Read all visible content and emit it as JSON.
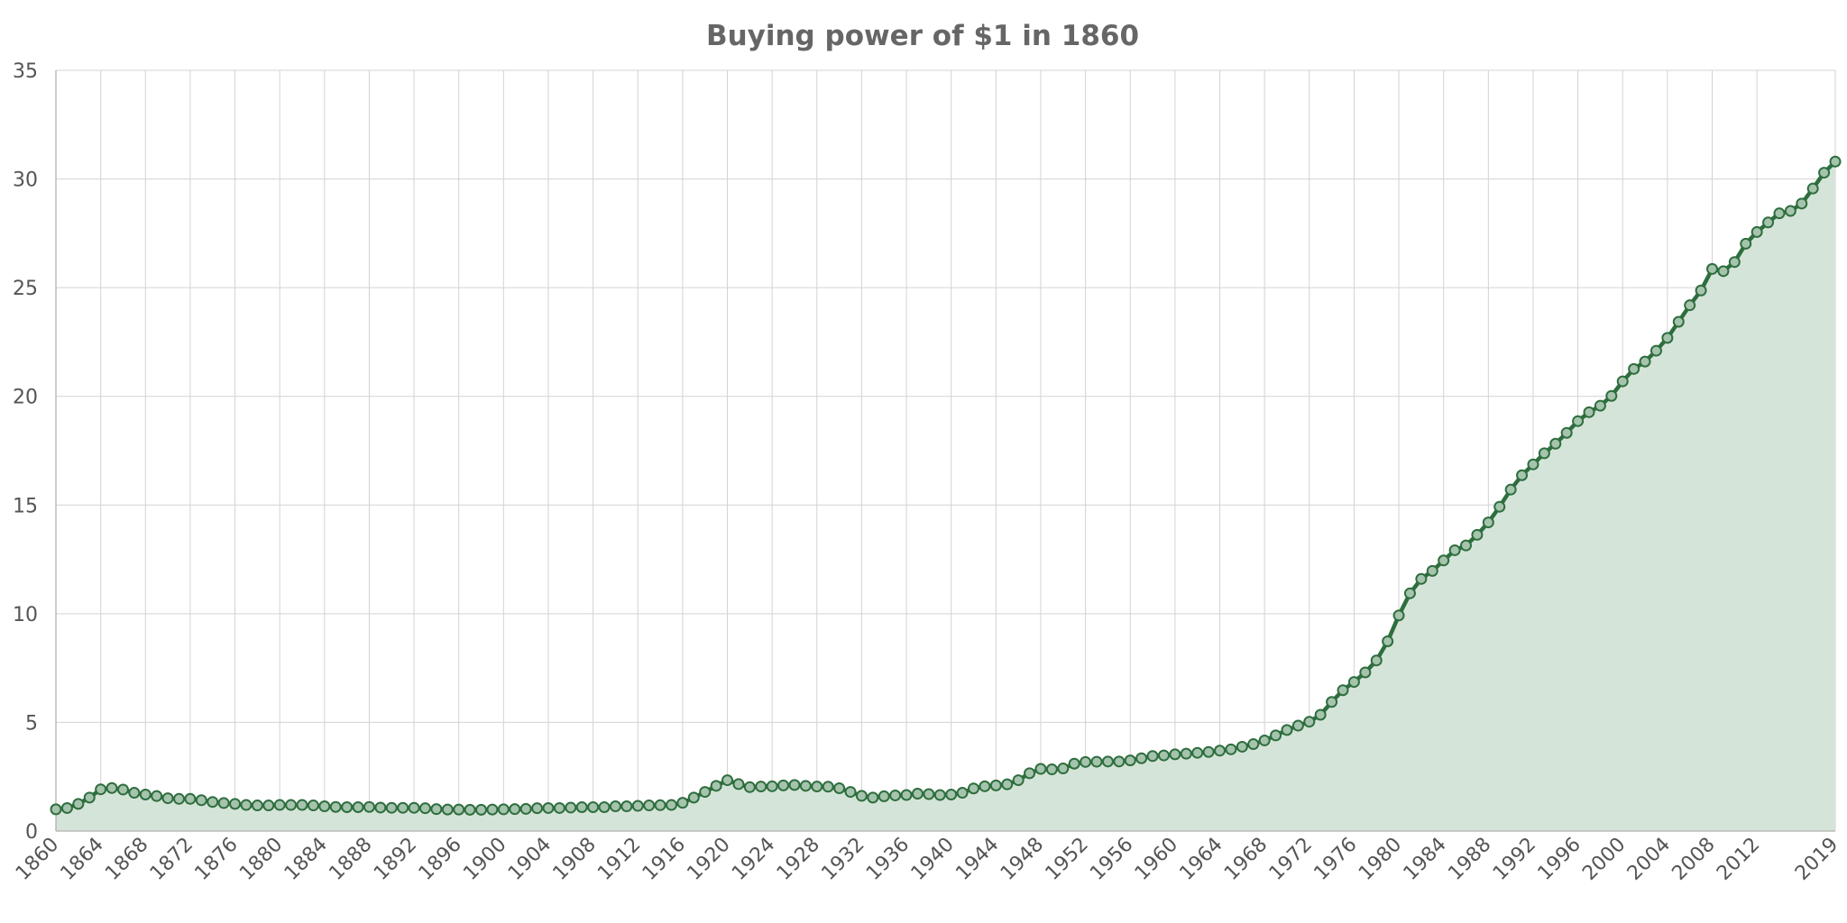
{
  "chart_data": {
    "type": "area",
    "title": "Buying power of $1 in 1860",
    "xlabel": "",
    "ylabel": "",
    "xlim": [
      1860,
      2019
    ],
    "ylim": [
      0,
      35
    ],
    "yticks": [
      0,
      5,
      10,
      15,
      20,
      25,
      30,
      35
    ],
    "xticks": [
      1860,
      1864,
      1868,
      1872,
      1876,
      1880,
      1884,
      1888,
      1892,
      1896,
      1900,
      1904,
      1908,
      1912,
      1916,
      1920,
      1924,
      1928,
      1932,
      1936,
      1940,
      1944,
      1948,
      1952,
      1956,
      1960,
      1964,
      1968,
      1972,
      1976,
      1980,
      1984,
      1988,
      1992,
      1996,
      2000,
      2004,
      2008,
      2012,
      2019
    ],
    "grid": true,
    "colors": {
      "line": "#2e6e3e",
      "fill": "#d5e4d8",
      "marker_fill": "#a6c4ad"
    },
    "series": [
      {
        "x": [
          1860,
          1861,
          1862,
          1863,
          1864,
          1865,
          1866,
          1867,
          1868,
          1869,
          1870,
          1871,
          1872,
          1873,
          1874,
          1875,
          1876,
          1877,
          1878,
          1879,
          1880,
          1881,
          1882,
          1883,
          1884,
          1885,
          1886,
          1887,
          1888,
          1889,
          1890,
          1891,
          1892,
          1893,
          1894,
          1895,
          1896,
          1897,
          1898,
          1899,
          1900,
          1901,
          1902,
          1903,
          1904,
          1905,
          1906,
          1907,
          1908,
          1909,
          1910,
          1911,
          1912,
          1913,
          1914,
          1915,
          1916,
          1917,
          1918,
          1919,
          1920,
          1921,
          1922,
          1923,
          1924,
          1925,
          1926,
          1927,
          1928,
          1929,
          1930,
          1931,
          1932,
          1933,
          1934,
          1935,
          1936,
          1937,
          1938,
          1939,
          1940,
          1941,
          1942,
          1943,
          1944,
          1945,
          1946,
          1947,
          1948,
          1949,
          1950,
          1951,
          1952,
          1953,
          1954,
          1955,
          1956,
          1957,
          1958,
          1959,
          1960,
          1961,
          1962,
          1963,
          1964,
          1965,
          1966,
          1967,
          1968,
          1969,
          1970,
          1971,
          1972,
          1973,
          1974,
          1975,
          1976,
          1977,
          1978,
          1979,
          1980,
          1981,
          1982,
          1983,
          1984,
          1985,
          1986,
          1987,
          1988,
          1989,
          1990,
          1991,
          1992,
          1993,
          1994,
          1995,
          1996,
          1997,
          1998,
          1999,
          2000,
          2001,
          2002,
          2003,
          2004,
          2005,
          2006,
          2007,
          2008,
          2009,
          2010,
          2011,
          2012,
          2013,
          2014,
          2015,
          2016,
          2017,
          2018,
          2019
        ],
        "values": [
          1.0,
          1.06,
          1.25,
          1.54,
          1.92,
          1.98,
          1.91,
          1.76,
          1.68,
          1.61,
          1.51,
          1.48,
          1.48,
          1.42,
          1.34,
          1.29,
          1.25,
          1.2,
          1.18,
          1.18,
          1.2,
          1.2,
          1.2,
          1.18,
          1.14,
          1.11,
          1.1,
          1.1,
          1.11,
          1.08,
          1.07,
          1.07,
          1.07,
          1.05,
          1.01,
          0.99,
          0.99,
          0.98,
          0.98,
          0.99,
          1.0,
          1.01,
          1.02,
          1.05,
          1.06,
          1.06,
          1.08,
          1.1,
          1.1,
          1.1,
          1.14,
          1.14,
          1.16,
          1.18,
          1.19,
          1.2,
          1.3,
          1.54,
          1.8,
          2.08,
          2.34,
          2.16,
          2.02,
          2.05,
          2.06,
          2.1,
          2.12,
          2.08,
          2.05,
          2.04,
          1.97,
          1.8,
          1.62,
          1.54,
          1.6,
          1.64,
          1.66,
          1.72,
          1.7,
          1.66,
          1.68,
          1.76,
          1.96,
          2.06,
          2.1,
          2.15,
          2.34,
          2.66,
          2.86,
          2.84,
          2.88,
          3.1,
          3.18,
          3.19,
          3.2,
          3.2,
          3.25,
          3.35,
          3.45,
          3.48,
          3.53,
          3.56,
          3.6,
          3.64,
          3.7,
          3.76,
          3.88,
          4.0,
          4.17,
          4.4,
          4.65,
          4.85,
          5.03,
          5.35,
          5.94,
          6.48,
          6.86,
          7.3,
          7.85,
          8.73,
          9.92,
          10.94,
          11.6,
          11.97,
          12.45,
          12.92,
          13.14,
          13.63,
          14.2,
          14.92,
          15.71,
          16.37,
          16.87,
          17.38,
          17.82,
          18.32,
          18.86,
          19.27,
          19.57,
          20.02,
          20.69,
          21.26,
          21.6,
          22.1,
          22.69,
          23.43,
          24.19,
          24.87,
          25.86,
          25.76,
          26.18,
          27.02,
          27.56,
          28.0,
          28.42,
          28.53,
          28.87,
          29.56,
          30.29,
          30.8
        ]
      }
    ]
  }
}
